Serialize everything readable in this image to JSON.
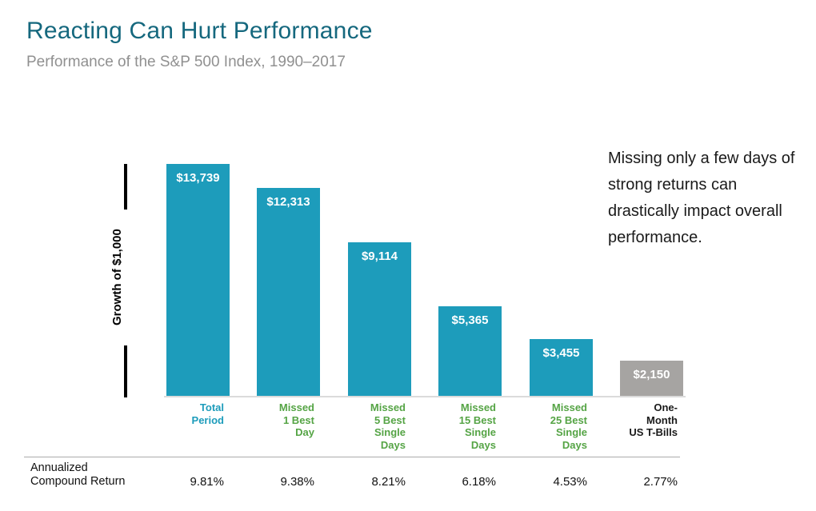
{
  "header": {
    "title": "Reacting Can Hurt Performance",
    "subtitle": "Performance of the S&P 500 Index, 1990–2017"
  },
  "annotation": {
    "text": "Missing only a few days of strong returns can drastically impact overall performance."
  },
  "colors": {
    "title_teal": "#15687E",
    "subtitle_gray": "#909090",
    "bar_teal": "#1D9CBB",
    "bar_gray": "#A6A4A2",
    "label_green": "#55A445",
    "label_black": "#1A1A1A",
    "value_label_white": "#FFFFFF",
    "axis_baseline_gray": "#DBDBDB",
    "bottom_rule_gray": "#ABABAB",
    "tick_black": "#000000"
  },
  "chart_data": {
    "type": "bar",
    "title": "Reacting Can Hurt Performance",
    "subtitle": "Performance of the S&P 500 Index, 1990–2017",
    "ylabel": "Growth of $1,000",
    "xlabel": "",
    "grid": false,
    "legend": false,
    "ylim": [
      0,
      14500
    ],
    "categories": [
      "Total Period",
      "Missed 1 Best Day",
      "Missed 5 Best Single Days",
      "Missed 15 Best Single Days",
      "Missed 25 Best Single Days",
      "One-Month US T-Bills"
    ],
    "category_labels": [
      "Total\nPeriod",
      "Missed\n1 Best\nDay",
      "Missed\n5 Best\nSingle\nDays",
      "Missed\n15 Best\nSingle\nDays",
      "Missed\n25 Best\nSingle\nDays",
      "One-\nMonth\nUS T-Bills"
    ],
    "values": [
      13739,
      12313,
      9114,
      5365,
      3455,
      2150
    ],
    "value_labels": [
      "$13,739",
      "$12,313",
      "$9,114",
      "$5,365",
      "$3,455",
      "$2,150"
    ],
    "bar_colors": [
      "#1D9CBB",
      "#1D9CBB",
      "#1D9CBB",
      "#1D9CBB",
      "#1D9CBB",
      "#A6A4A2"
    ],
    "category_label_colors": [
      "#1D9CBB",
      "#55A445",
      "#55A445",
      "#55A445",
      "#55A445",
      "#1A1A1A"
    ],
    "annualized_row": {
      "label": "Annualized\nCompound Return",
      "values": [
        "9.81%",
        "9.38%",
        "8.21%",
        "6.18%",
        "4.53%",
        "2.77%"
      ]
    }
  }
}
